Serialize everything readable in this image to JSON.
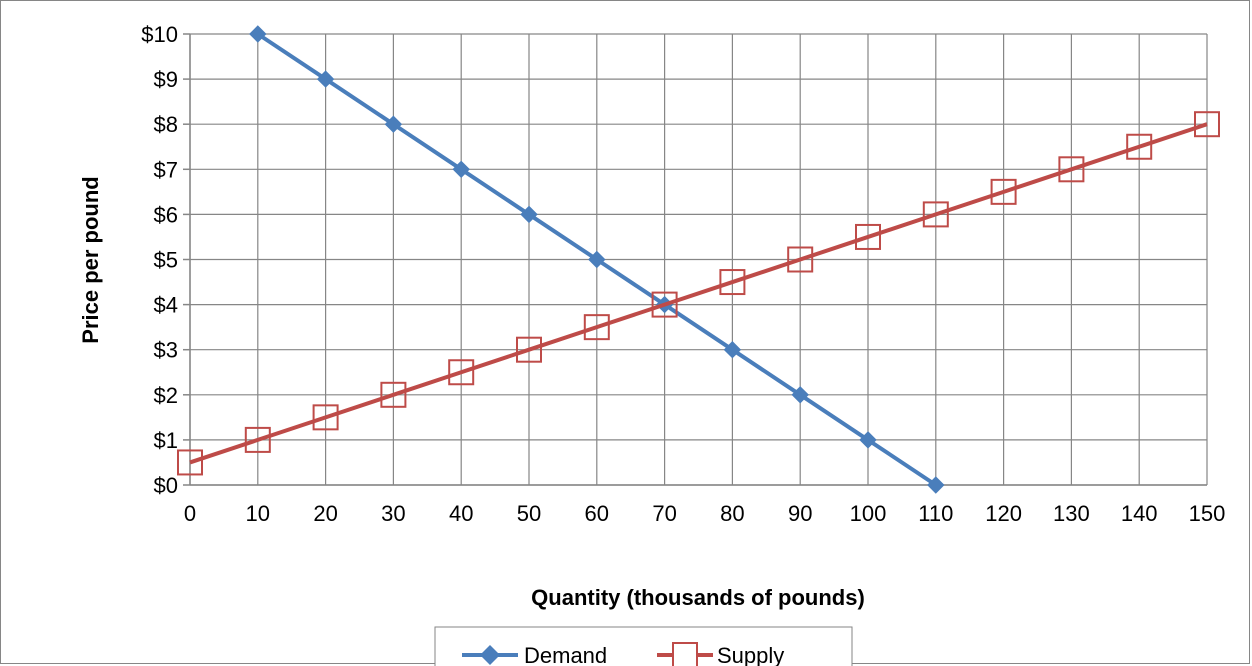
{
  "chart_data": {
    "type": "line",
    "xlabel": "Quantity (thousands of pounds)",
    "ylabel": "Price per pound",
    "xlim": [
      0,
      150
    ],
    "ylim": [
      0,
      10
    ],
    "x_ticks": [
      "0",
      "10",
      "20",
      "30",
      "40",
      "50",
      "60",
      "70",
      "80",
      "90",
      "100",
      "110",
      "120",
      "130",
      "140",
      "150"
    ],
    "y_ticks": [
      "$0",
      "$1",
      "$2",
      "$3",
      "$4",
      "$5",
      "$6",
      "$7",
      "$8",
      "$9",
      "$10"
    ],
    "grid": true,
    "legend_position": "bottom",
    "series": [
      {
        "name": "Demand",
        "color": "#4a7ebb",
        "marker": "diamond",
        "points": [
          [
            10,
            10
          ],
          [
            20,
            9
          ],
          [
            30,
            8
          ],
          [
            40,
            7
          ],
          [
            50,
            6
          ],
          [
            60,
            5
          ],
          [
            70,
            4
          ],
          [
            80,
            3
          ],
          [
            90,
            2
          ],
          [
            100,
            1
          ],
          [
            110,
            0
          ]
        ]
      },
      {
        "name": "Supply",
        "color": "#be4b48",
        "marker": "open-square",
        "points": [
          [
            0,
            0.5
          ],
          [
            10,
            1
          ],
          [
            20,
            1.5
          ],
          [
            30,
            2
          ],
          [
            40,
            2.5
          ],
          [
            50,
            3
          ],
          [
            60,
            3.5
          ],
          [
            70,
            4
          ],
          [
            80,
            4.5
          ],
          [
            90,
            5
          ],
          [
            100,
            5.5
          ],
          [
            110,
            6
          ],
          [
            120,
            6.5
          ],
          [
            130,
            7
          ],
          [
            140,
            7.5
          ],
          [
            150,
            8
          ]
        ]
      }
    ]
  }
}
